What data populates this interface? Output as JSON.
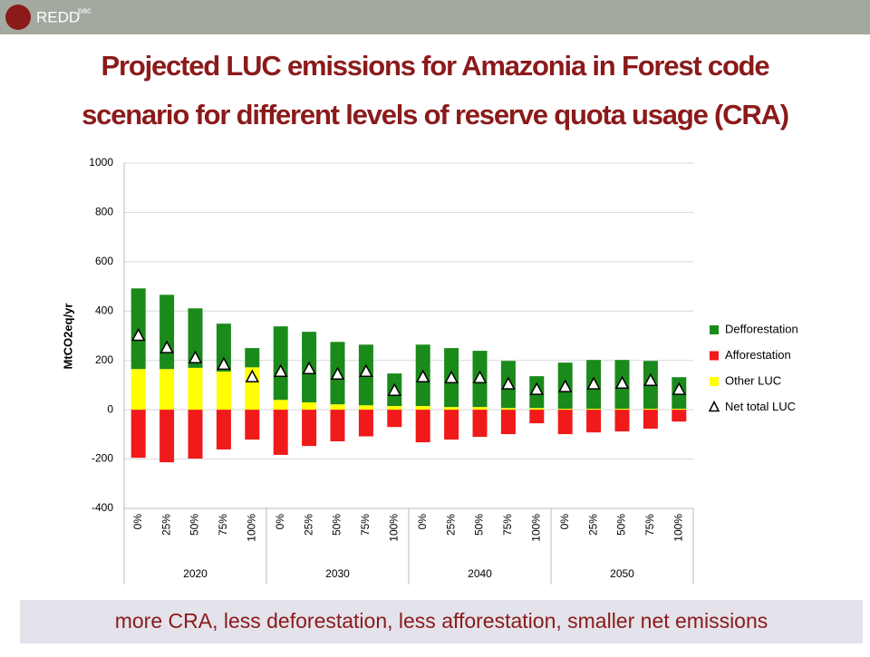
{
  "header": {
    "logo": "REDD",
    "logo_sup": "pac"
  },
  "title": [
    "Projected LUC emissions for Amazonia in Forest code",
    "scenario for different levels of reserve quota usage (CRA)"
  ],
  "chart_data": {
    "type": "bar",
    "stacked": true,
    "ylabel": "MtCO2eq/yr",
    "categories": [
      "0%",
      "25%",
      "50%",
      "75%",
      "100%",
      "0%",
      "25%",
      "50%",
      "75%",
      "100%",
      "0%",
      "25%",
      "50%",
      "75%",
      "100%",
      "0%",
      "25%",
      "50%",
      "75%",
      "100%"
    ],
    "groups": [
      "2020",
      "2030",
      "2040",
      "2050"
    ],
    "series": [
      {
        "name": "Defforestation",
        "type": "bar",
        "color": "#1a8a1a",
        "values": [
          327,
          301,
          241,
          194,
          78,
          298,
          286,
          253,
          246,
          132,
          249,
          239,
          228,
          191,
          129,
          187,
          198,
          198,
          194,
          128
        ]
      },
      {
        "name": "Afforestation",
        "type": "bar",
        "color": "#f01a1a",
        "values": [
          -195,
          -213,
          -198,
          -161,
          -121,
          -183,
          -147,
          -128,
          -108,
          -70,
          -132,
          -121,
          -110,
          -99,
          -55,
          -99,
          -92,
          -88,
          -77,
          -48
        ]
      },
      {
        "name": "Other LUC",
        "type": "bar",
        "color": "#ffff00",
        "values": [
          165,
          165,
          170,
          155,
          172,
          40,
          30,
          22,
          18,
          15,
          15,
          11,
          11,
          7,
          7,
          4,
          4,
          4,
          4,
          4
        ]
      },
      {
        "name": "Net total LUC",
        "type": "marker",
        "color": "#ffffff",
        "values": [
          300,
          250,
          209,
          183,
          132,
          154,
          165,
          143,
          154,
          77,
          132,
          128,
          128,
          103,
          81,
          92,
          103,
          106,
          117,
          81
        ]
      }
    ],
    "ylim": [
      -400,
      1000
    ],
    "yticks": [
      -400,
      -200,
      0,
      200,
      400,
      600,
      800,
      1000
    ],
    "grid": true,
    "legend": "right"
  },
  "footer": "more CRA, less deforestation, less afforestation, smaller net emissions"
}
